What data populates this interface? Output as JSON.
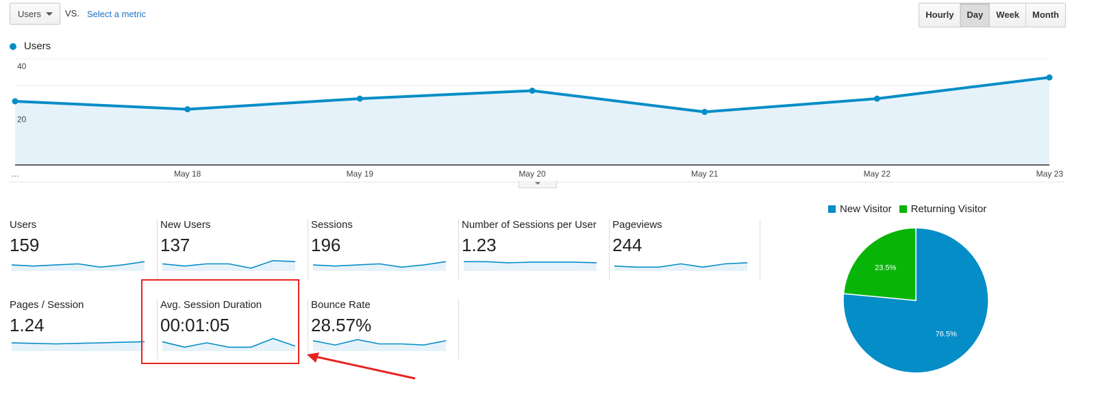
{
  "controls": {
    "metric_selected": "Users",
    "vs_label": "VS.",
    "select_metric_link": "Select a metric",
    "granularity": [
      "Hourly",
      "Day",
      "Week",
      "Month"
    ],
    "granularity_active": "Day"
  },
  "colors": {
    "series": "#058dc7",
    "series_fill": "#e6f2fa",
    "new_visitor": "#058dc7",
    "returning_visitor": "#09b409",
    "highlight": "#e8221f"
  },
  "chart_data": [
    {
      "type": "line",
      "legend": [
        "Users"
      ],
      "x": [
        "…",
        "May 18",
        "May 19",
        "May 20",
        "May 21",
        "May 22",
        "May 23"
      ],
      "series": [
        {
          "name": "Users",
          "values": [
            24,
            21,
            25,
            28,
            20,
            25,
            33
          ]
        }
      ],
      "y_ticks": [
        40,
        20
      ],
      "ylim": [
        0,
        40
      ],
      "grid": true,
      "area_fill": true
    },
    {
      "type": "pie",
      "legend_position": "top",
      "labels": [
        "New Visitor",
        "Returning Visitor"
      ],
      "values": [
        76.5,
        23.5
      ],
      "value_labels": [
        "76.5%",
        "23.5%"
      ]
    }
  ],
  "scorecards": [
    {
      "label": "Users",
      "value": "159",
      "spark": [
        5,
        4,
        5,
        6,
        3,
        5,
        8
      ]
    },
    {
      "label": "New Users",
      "value": "137",
      "spark": [
        6,
        4,
        6,
        6,
        2,
        9,
        8
      ]
    },
    {
      "label": "Sessions",
      "value": "196",
      "spark": [
        5,
        4,
        5,
        6,
        3,
        5,
        8
      ]
    },
    {
      "label": "Number of Sessions per User",
      "value": "1.23",
      "spark": [
        8,
        8,
        7,
        7.5,
        7.5,
        7.5,
        7
      ]
    },
    {
      "label": "Pageviews",
      "value": "244",
      "spark": [
        4,
        3,
        3,
        6,
        3,
        6,
        7
      ]
    },
    {
      "label": "Pages / Session",
      "value": "1.24",
      "spark": [
        7,
        6.5,
        6,
        6.5,
        7,
        7.5,
        8
      ]
    },
    {
      "label": "Avg. Session Duration",
      "value": "00:01:05",
      "spark": [
        8,
        3,
        7,
        3,
        3,
        11,
        4
      ]
    },
    {
      "label": "Bounce Rate",
      "value": "28.57%",
      "spark": [
        9,
        5,
        10,
        6,
        6,
        5,
        9
      ]
    }
  ]
}
